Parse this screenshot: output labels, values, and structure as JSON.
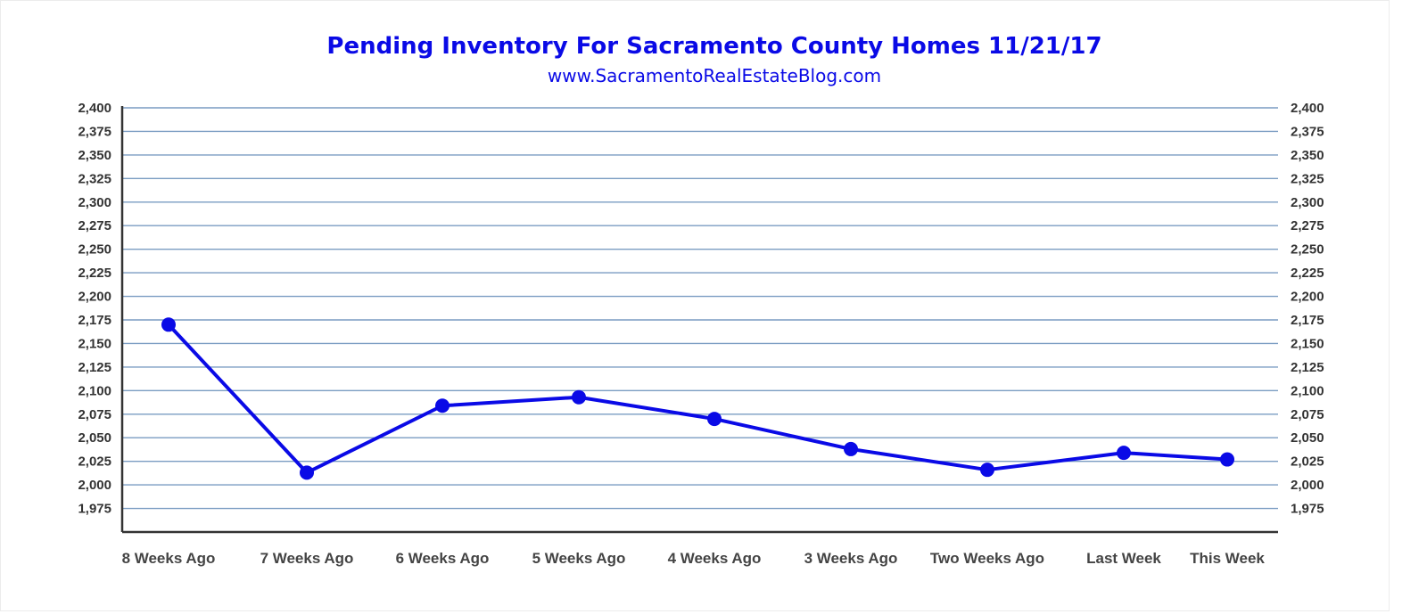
{
  "chart_data": {
    "type": "line",
    "title": "Pending Inventory For Sacramento County Homes 11/21/17",
    "subtitle": "www.SacramentoRealEstateBlog.com",
    "xlabel": "",
    "ylabel": "",
    "categories": [
      "8 Weeks Ago",
      "7 Weeks Ago",
      "6 Weeks Ago",
      "5 Weeks Ago",
      "4 Weeks Ago",
      "3 Weeks Ago",
      "Two Weeks Ago",
      "Last Week",
      "This Week"
    ],
    "series": [
      {
        "values": [
          2170,
          2013,
          2084,
          2093,
          2070,
          2038,
          2016,
          2034,
          2027
        ]
      }
    ],
    "ylim": [
      1950,
      2400
    ],
    "yticks": [
      "1,975",
      "2,000",
      "2,025",
      "2,050",
      "2,075",
      "2,100",
      "2,125",
      "2,150",
      "2,175",
      "2,200",
      "2,225",
      "2,250",
      "2,275",
      "2,300",
      "2,325",
      "2,350",
      "2,375",
      "2,400"
    ],
    "ytick_values": [
      1975,
      2000,
      2025,
      2050,
      2075,
      2100,
      2125,
      2150,
      2175,
      2200,
      2225,
      2250,
      2275,
      2300,
      2325,
      2350,
      2375,
      2400
    ],
    "grid": true,
    "colors": {
      "title": "#0a0ae6",
      "line": "#0a0ae6",
      "grid": "#7a9cc2",
      "axis": "#333333",
      "ticks": "#333333"
    }
  }
}
